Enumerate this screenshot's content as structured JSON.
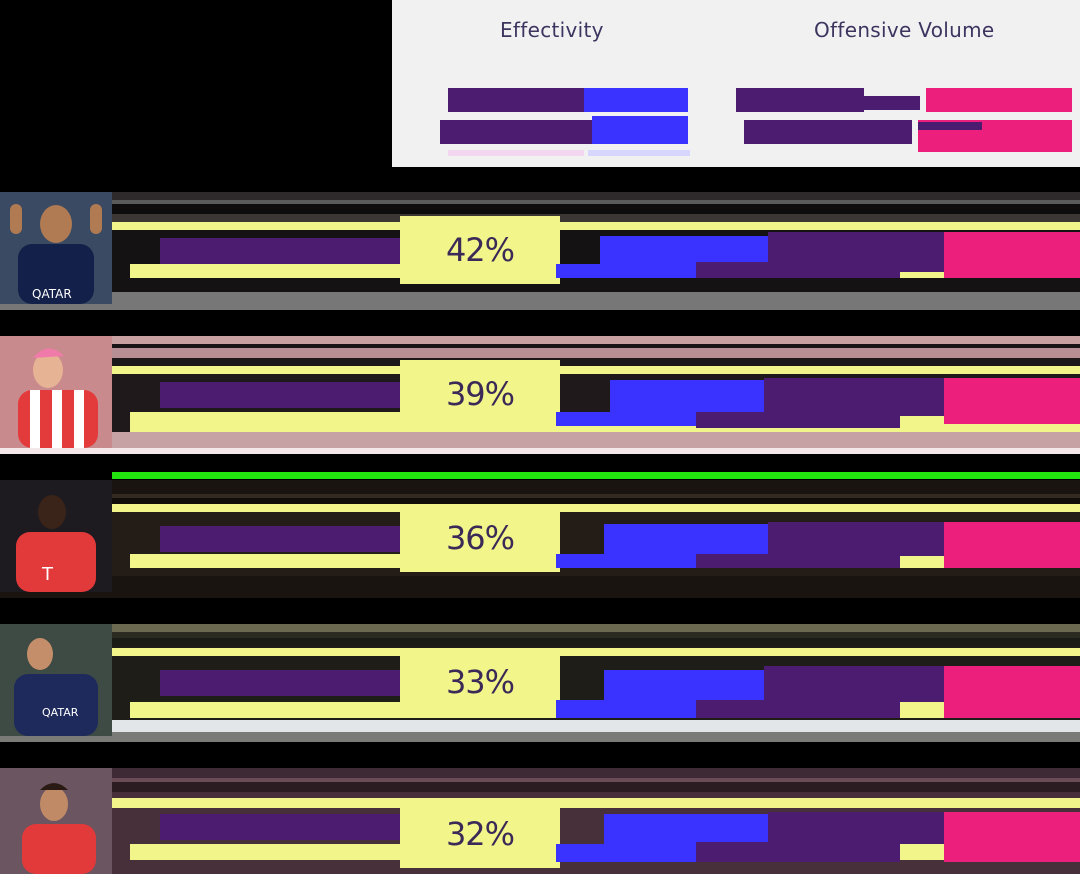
{
  "headers": {
    "effectivity": "Effectivity",
    "offensive_volume": "Offensive Volume"
  },
  "colors": {
    "purple": "#4b1c70",
    "blue": "#3a32ff",
    "pink": "#ec1f7d",
    "yellow": "#f2f68a",
    "header_bg": "#f2f1f2"
  },
  "chart_data": {
    "type": "table",
    "columns": [
      "Effectivity",
      "Offensive Volume"
    ],
    "rows": [
      {
        "effectivity": "42%",
        "photo": "player-psg-1"
      },
      {
        "effectivity": "39%",
        "photo": "player-atletico"
      },
      {
        "effectivity": "36%",
        "photo": "player-bayern-1"
      },
      {
        "effectivity": "33%",
        "photo": "player-psg-2"
      },
      {
        "effectivity": "32%",
        "photo": "player-bayern-2"
      }
    ]
  }
}
